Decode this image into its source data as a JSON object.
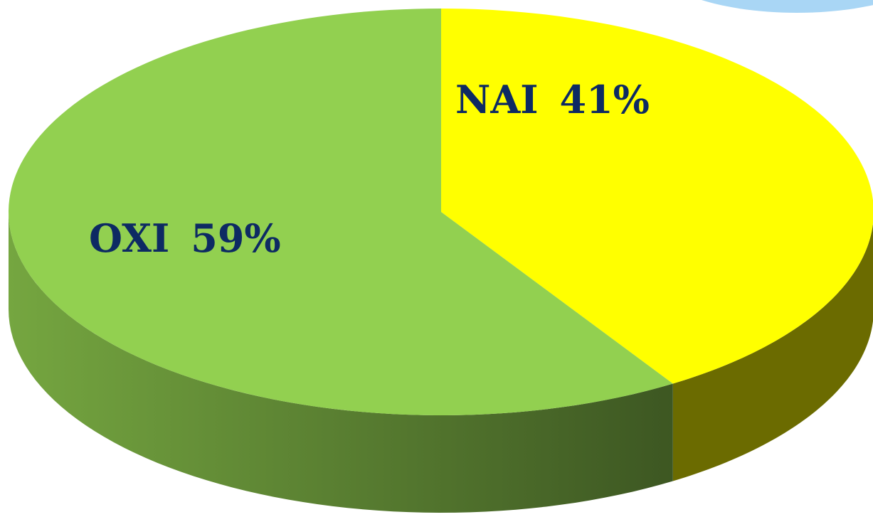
{
  "chart_data": {
    "type": "pie",
    "categories": [
      "NAI",
      "OXI"
    ],
    "values": [
      41,
      59
    ],
    "value_labels": [
      "41%",
      "59%"
    ],
    "colors": [
      "#ffff00",
      "#92d050"
    ]
  }
}
